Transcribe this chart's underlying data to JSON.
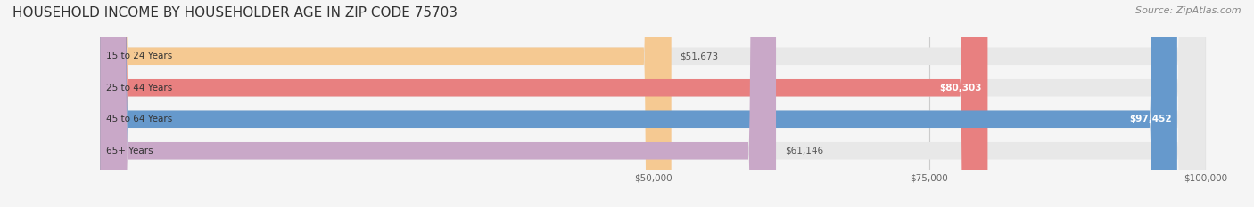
{
  "title": "HOUSEHOLD INCOME BY HOUSEHOLDER AGE IN ZIP CODE 75703",
  "source_text": "Source: ZipAtlas.com",
  "categories": [
    "15 to 24 Years",
    "25 to 44 Years",
    "45 to 64 Years",
    "65+ Years"
  ],
  "values": [
    51673,
    80303,
    97452,
    61146
  ],
  "bar_colors": [
    "#f5c992",
    "#e88080",
    "#6699cc",
    "#c9a8c8"
  ],
  "bar_edge_colors": [
    "#e0a050",
    "#d06060",
    "#4477aa",
    "#a080a0"
  ],
  "label_colors": [
    "#888855",
    "#cc4444",
    "#ffffff",
    "#888855"
  ],
  "value_labels": [
    "$51,673",
    "$80,303",
    "$97,452",
    "$61,146"
  ],
  "value_label_inside": [
    false,
    true,
    true,
    false
  ],
  "xlim_min": 0,
  "xlim_max": 100000,
  "xticks": [
    50000,
    75000,
    100000
  ],
  "xtick_labels": [
    "$50,000",
    "$75,000",
    "$100,000"
  ],
  "bg_color": "#f5f5f5",
  "bar_bg_color": "#e8e8e8",
  "title_fontsize": 11,
  "source_fontsize": 8,
  "bar_height": 0.55,
  "figsize": [
    14.06,
    2.33
  ],
  "dpi": 100
}
